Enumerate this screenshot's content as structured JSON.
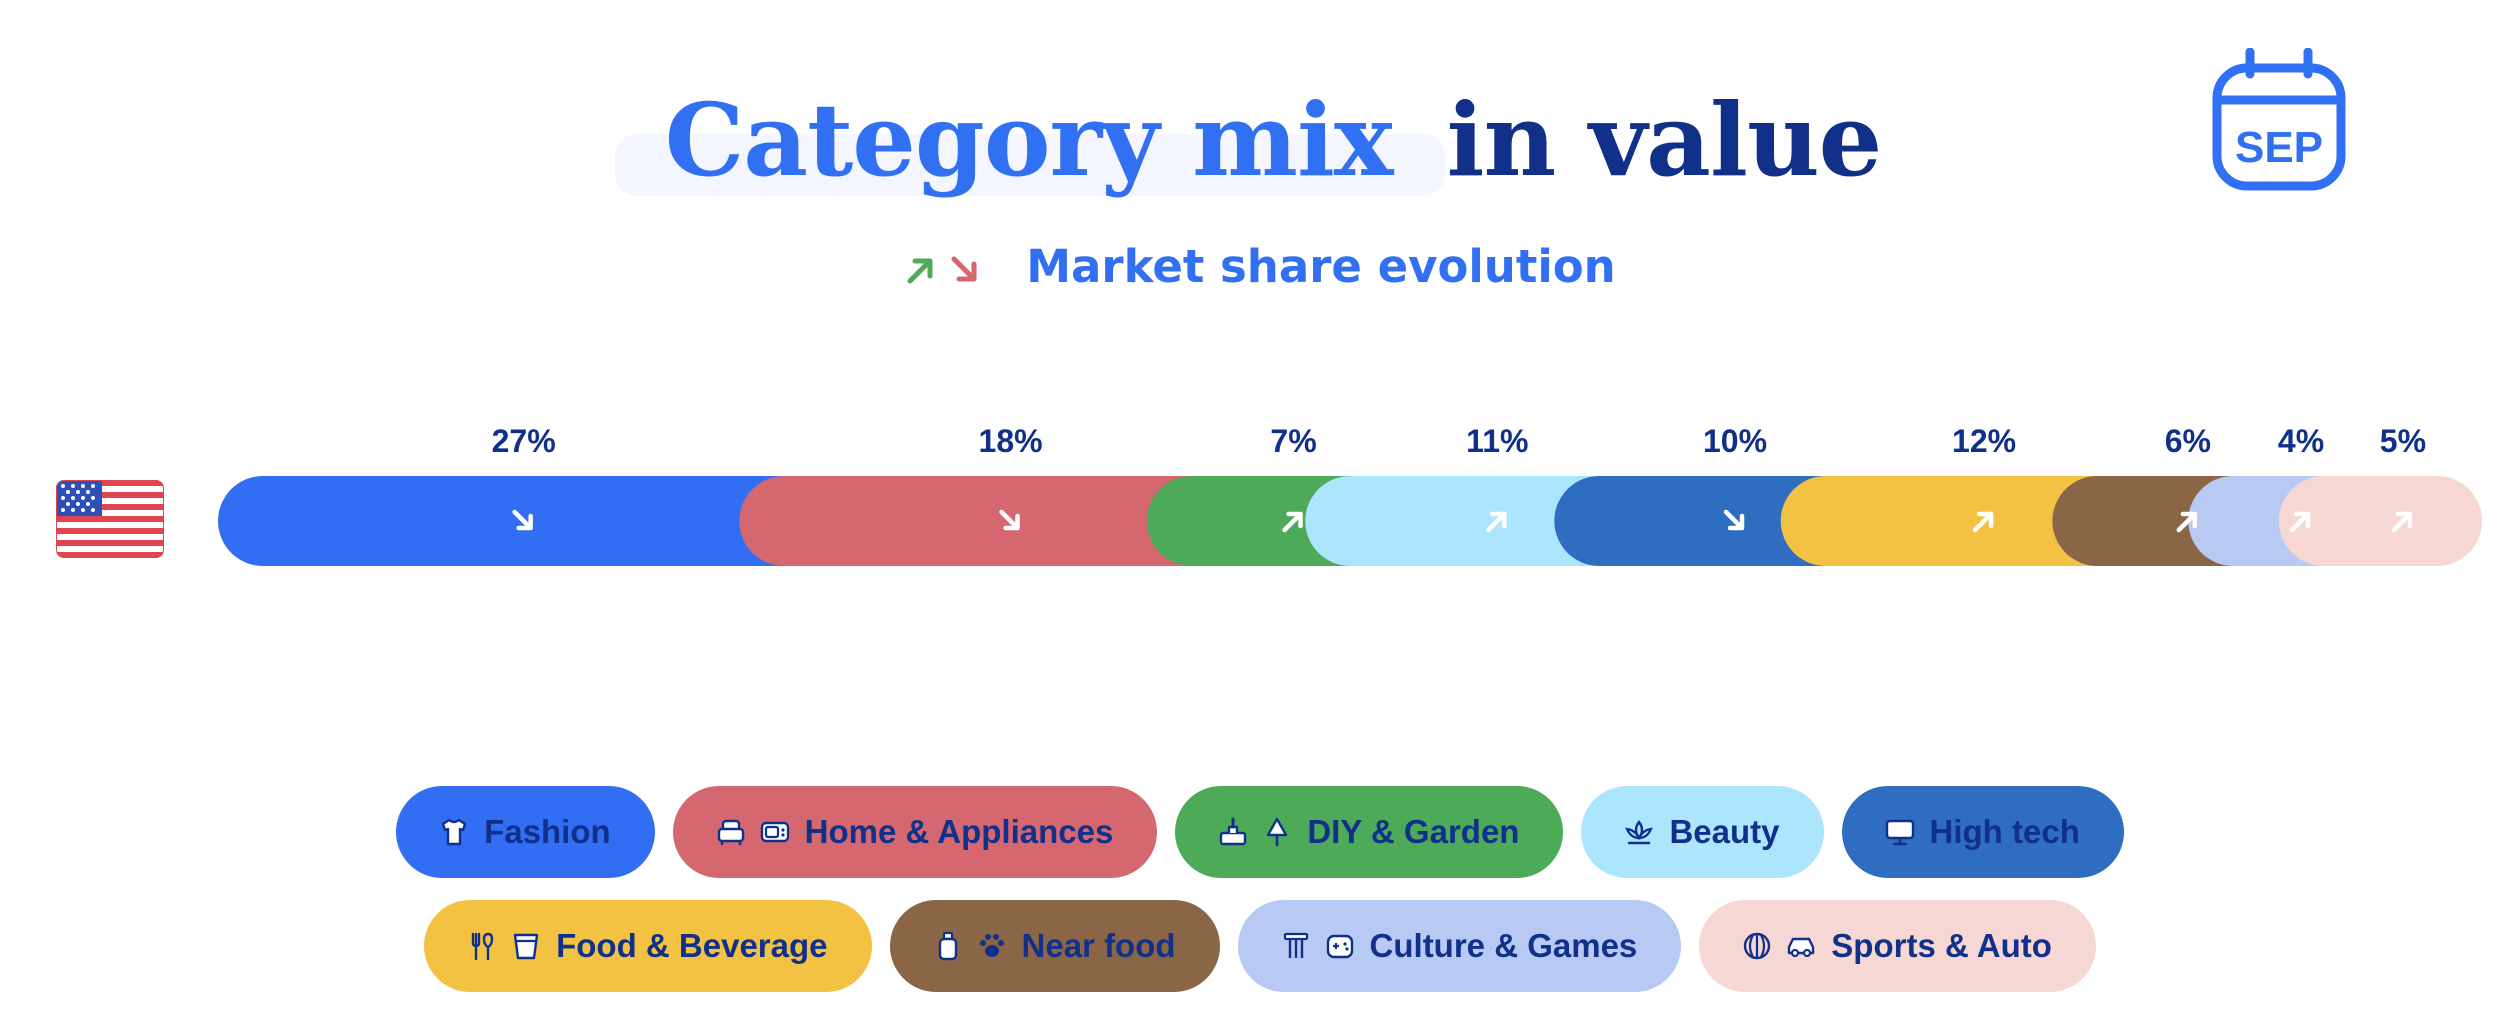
{
  "title": {
    "highlight": "Category mix",
    "rest": "in value"
  },
  "subtitle": "Market share evolution",
  "calendar_label": "SEP",
  "colors": {
    "title_highlight": "#3170f2",
    "title_rest": "#10308a",
    "arrow_up": "#4caa58",
    "arrow_down": "#d4666f",
    "label_text": "#10308a"
  },
  "chart_data": {
    "type": "bar",
    "orientation": "horizontal-stacked",
    "unit": "%",
    "country_flag": "us-flag-icon",
    "categories": [
      "Fashion",
      "Home & Appliances",
      "DIY & Garden",
      "Beauty",
      "High tech",
      "Food & Beverage",
      "Near food",
      "Culture & Games",
      "Sports & Auto"
    ],
    "values": [
      27,
      18,
      7,
      11,
      10,
      12,
      6,
      4,
      5
    ],
    "labels": [
      "27%",
      "18%",
      "7%",
      "11%",
      "10%",
      "12%",
      "6%",
      "4%",
      "5%"
    ],
    "trend": [
      "down",
      "down",
      "up",
      "up",
      "down",
      "up",
      "up",
      "up",
      "up"
    ],
    "colors": [
      "#316ef3",
      "#d4676f",
      "#4caa58",
      "#ace5fe",
      "#2e6dbf",
      "#f4c242",
      "#8a6647",
      "#b8c9f4",
      "#f6d7d3"
    ]
  },
  "legend": {
    "rows": [
      [
        {
          "label": "Fashion",
          "icons": [
            "tshirt-icon"
          ],
          "color": "#316ef3"
        },
        {
          "label": "Home & Appliances",
          "icons": [
            "armchair-icon",
            "microwave-icon"
          ],
          "color": "#d4676f"
        },
        {
          "label": "DIY & Garden",
          "icons": [
            "paint-roller-icon",
            "tree-icon"
          ],
          "color": "#4caa58"
        },
        {
          "label": "Beauty",
          "icons": [
            "lotus-icon"
          ],
          "color": "#ace5fe"
        },
        {
          "label": "High tech",
          "icons": [
            "monitor-icon"
          ],
          "color": "#2e6dbf"
        }
      ],
      [
        {
          "label": "Food & Beverage",
          "icons": [
            "fork-knife-icon",
            "cup-icon"
          ],
          "color": "#f4c242"
        },
        {
          "label": "Near food",
          "icons": [
            "bottle-icon",
            "paw-icon"
          ],
          "color": "#8a6647"
        },
        {
          "label": "Culture & Games",
          "icons": [
            "column-icon",
            "gamepad-icon"
          ],
          "color": "#b8c9f4"
        },
        {
          "label": "Sports & Auto",
          "icons": [
            "ball-icon",
            "car-icon"
          ],
          "color": "#f6d7d3"
        }
      ]
    ]
  }
}
